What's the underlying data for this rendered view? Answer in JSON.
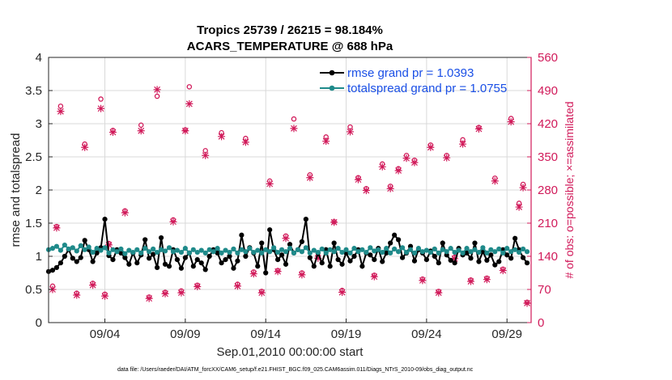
{
  "chart_data": {
    "type": "line",
    "title_line1": "Tropics 25739 / 26215 = 98.184%",
    "title_line2": "ACARS_TEMPERATURE @ 688 hPa",
    "xlabel": "Sep.01,2010 00:00:00 start",
    "ylabel_left": "rmse and totalspread",
    "ylabel_right": "# of obs: o=possible; ×=assimilated",
    "footer": "data file: /Users/raeder/DAI/ATM_forcXX/CAM6_setup/f.e21.FHIST_BGC.f09_025.CAM6assim.011/Diags_NTrS_2010-09/obs_diag_output.nc",
    "xlim": [
      0.5,
      30.5
    ],
    "ylim_left": [
      0,
      4
    ],
    "ylim_right": [
      0,
      560
    ],
    "xticks": [
      {
        "x": 4,
        "label": "09/04"
      },
      {
        "x": 9,
        "label": "09/09"
      },
      {
        "x": 14,
        "label": "09/14"
      },
      {
        "x": 19,
        "label": "09/19"
      },
      {
        "x": 24,
        "label": "09/24"
      },
      {
        "x": 29,
        "label": "09/29"
      }
    ],
    "yticks_left": [
      {
        "v": 0,
        "label": "0"
      },
      {
        "v": 0.5,
        "label": "0.5"
      },
      {
        "v": 1,
        "label": "1"
      },
      {
        "v": 1.5,
        "label": "1.5"
      },
      {
        "v": 2,
        "label": "2"
      },
      {
        "v": 2.5,
        "label": "2.5"
      },
      {
        "v": 3,
        "label": "3"
      },
      {
        "v": 3.5,
        "label": "3.5"
      },
      {
        "v": 4,
        "label": "4"
      }
    ],
    "yticks_right": [
      {
        "v": 0,
        "label": "0"
      },
      {
        "v": 70,
        "label": "70"
      },
      {
        "v": 140,
        "label": "140"
      },
      {
        "v": 210,
        "label": "210"
      },
      {
        "v": 280,
        "label": "280"
      },
      {
        "v": 350,
        "label": "350"
      },
      {
        "v": 420,
        "label": "420"
      },
      {
        "v": 490,
        "label": "490"
      },
      {
        "v": 560,
        "label": "560"
      }
    ],
    "series": [
      {
        "name": "rmse",
        "legend": "rmse grand pr = 1.0393",
        "color": "#000000",
        "x": [
          0.5,
          0.75,
          1.0,
          1.25,
          1.5,
          1.75,
          2.0,
          2.25,
          2.5,
          2.75,
          3.0,
          3.25,
          3.5,
          3.75,
          4.0,
          4.25,
          4.5,
          4.75,
          5.0,
          5.25,
          5.5,
          5.75,
          6.0,
          6.25,
          6.5,
          6.75,
          7.0,
          7.25,
          7.5,
          7.75,
          8.0,
          8.25,
          8.5,
          8.75,
          9.0,
          9.25,
          9.5,
          9.75,
          10.0,
          10.25,
          10.5,
          10.75,
          11.0,
          11.25,
          11.5,
          11.75,
          12.0,
          12.25,
          12.5,
          12.75,
          13.0,
          13.25,
          13.5,
          13.75,
          14.0,
          14.25,
          14.5,
          14.75,
          15.0,
          15.25,
          15.5,
          15.75,
          16.0,
          16.25,
          16.5,
          16.75,
          17.0,
          17.25,
          17.5,
          17.75,
          18.0,
          18.25,
          18.5,
          18.75,
          19.0,
          19.25,
          19.5,
          19.75,
          20.0,
          20.25,
          20.5,
          20.75,
          21.0,
          21.25,
          21.5,
          21.75,
          22.0,
          22.25,
          22.5,
          22.75,
          23.0,
          23.25,
          23.5,
          23.75,
          24.0,
          24.25,
          24.5,
          24.75,
          25.0,
          25.25,
          25.5,
          25.75,
          26.0,
          26.25,
          26.5,
          26.75,
          27.0,
          27.25,
          27.5,
          27.75,
          28.0,
          28.25,
          28.5,
          28.75,
          29.0,
          29.25,
          29.5,
          29.75,
          30.0,
          30.25
        ],
        "y": [
          0.77,
          0.79,
          0.83,
          0.9,
          1.0,
          1.1,
          0.97,
          0.92,
          0.98,
          1.24,
          1.1,
          0.92,
          1.05,
          1.13,
          1.56,
          1.01,
          0.95,
          1.1,
          1.05,
          0.98,
          0.88,
          1.05,
          0.9,
          1.02,
          1.25,
          0.97,
          1.03,
          0.83,
          1.28,
          0.88,
          0.85,
          1.1,
          0.95,
          0.82,
          0.98,
          1.05,
          0.85,
          0.95,
          0.9,
          0.8,
          1.0,
          1.1,
          1.05,
          0.9,
          0.95,
          1.0,
          0.82,
          0.93,
          1.32,
          1.0,
          1.13,
          1.05,
          0.85,
          1.2,
          0.75,
          1.4,
          1.1,
          0.95,
          1.02,
          0.88,
          1.18,
          1.05,
          1.1,
          1.22,
          1.56,
          0.98,
          0.85,
          1.05,
          0.9,
          1.1,
          0.85,
          1.2,
          0.95,
          0.88,
          1.05,
          0.93,
          1.0,
          1.1,
          0.85,
          1.05,
          1.02,
          0.95,
          1.12,
          0.92,
          1.05,
          1.2,
          1.32,
          1.25,
          0.98,
          1.05,
          1.15,
          0.93,
          1.1,
          1.05,
          0.95,
          1.08,
          1.0,
          0.9,
          1.2,
          1.02,
          0.94,
          0.9,
          1.12,
          1.02,
          1.05,
          0.97,
          1.2,
          0.92,
          1.07,
          0.94,
          1.02,
          0.87,
          0.92,
          1.1,
          1.02,
          0.97,
          1.27,
          1.1,
          0.98,
          0.9
        ]
      },
      {
        "name": "totalspread",
        "legend": "totalspread grand pr = 1.0755",
        "color": "#1f8a8a",
        "x": [
          0.5,
          0.75,
          1.0,
          1.25,
          1.5,
          1.75,
          2.0,
          2.25,
          2.5,
          2.75,
          3.0,
          3.25,
          3.5,
          3.75,
          4.0,
          4.25,
          4.5,
          4.75,
          5.0,
          5.25,
          5.5,
          5.75,
          6.0,
          6.25,
          6.5,
          6.75,
          7.0,
          7.25,
          7.5,
          7.75,
          8.0,
          8.25,
          8.5,
          8.75,
          9.0,
          9.25,
          9.5,
          9.75,
          10.0,
          10.25,
          10.5,
          10.75,
          11.0,
          11.25,
          11.5,
          11.75,
          12.0,
          12.25,
          12.5,
          12.75,
          13.0,
          13.25,
          13.5,
          13.75,
          14.0,
          14.25,
          14.5,
          14.75,
          15.0,
          15.25,
          15.5,
          15.75,
          16.0,
          16.25,
          16.5,
          16.75,
          17.0,
          17.25,
          17.5,
          17.75,
          18.0,
          18.25,
          18.5,
          18.75,
          19.0,
          19.25,
          19.5,
          19.75,
          20.0,
          20.25,
          20.5,
          20.75,
          21.0,
          21.25,
          21.5,
          21.75,
          22.0,
          22.25,
          22.5,
          22.75,
          23.0,
          23.25,
          23.5,
          23.75,
          24.0,
          24.25,
          24.5,
          24.75,
          25.0,
          25.25,
          25.5,
          25.75,
          26.0,
          26.25,
          26.5,
          26.75,
          27.0,
          27.25,
          27.5,
          27.75,
          28.0,
          28.25,
          28.5,
          28.75,
          29.0,
          29.25,
          29.5,
          29.75,
          30.0,
          30.25
        ],
        "y": [
          1.1,
          1.12,
          1.15,
          1.09,
          1.17,
          1.11,
          1.13,
          1.08,
          1.16,
          1.1,
          1.14,
          1.06,
          1.12,
          1.09,
          1.13,
          1.05,
          1.1,
          1.07,
          1.11,
          1.04,
          1.09,
          1.06,
          1.1,
          1.05,
          1.12,
          1.07,
          1.11,
          1.06,
          1.1,
          1.08,
          1.13,
          1.07,
          1.09,
          1.06,
          1.12,
          1.05,
          1.1,
          1.06,
          1.09,
          1.05,
          1.1,
          1.07,
          1.12,
          1.05,
          1.09,
          1.06,
          1.11,
          1.05,
          1.1,
          1.07,
          1.12,
          1.06,
          1.09,
          1.05,
          1.1,
          1.07,
          1.13,
          1.06,
          1.1,
          1.07,
          1.12,
          1.05,
          1.1,
          1.07,
          1.13,
          1.05,
          1.09,
          1.06,
          1.11,
          1.05,
          1.1,
          1.07,
          1.12,
          1.06,
          1.1,
          1.05,
          1.12,
          1.07,
          1.1,
          1.06,
          1.13,
          1.08,
          1.1,
          1.06,
          1.12,
          1.05,
          1.11,
          1.07,
          1.13,
          1.06,
          1.1,
          1.05,
          1.12,
          1.07,
          1.09,
          1.06,
          1.11,
          1.05,
          1.1,
          1.07,
          1.12,
          1.06,
          1.09,
          1.05,
          1.12,
          1.07,
          1.1,
          1.06,
          1.13,
          1.05,
          1.1,
          1.07,
          1.11,
          1.05,
          1.12,
          1.07,
          1.1,
          1.06,
          1.11,
          1.07
        ]
      }
    ],
    "obs_possible": {
      "marker": "o",
      "color": "#d11a5a",
      "x": [
        0.75,
        1.0,
        1.25,
        2.25,
        2.75,
        3.25,
        3.75,
        4.0,
        4.25,
        4.5,
        5.25,
        6.25,
        6.75,
        7.25,
        7.75,
        8.25,
        8.75,
        9.0,
        9.25,
        9.75,
        10.25,
        11.25,
        12.25,
        12.75,
        13.25,
        13.75,
        14.25,
        14.75,
        15.25,
        15.75,
        16.25,
        16.75,
        17.25,
        17.75,
        18.25,
        18.75,
        19.25,
        19.75,
        20.25,
        20.75,
        21.25,
        21.75,
        22.25,
        22.75,
        23.25,
        23.75,
        24.25,
        24.75,
        25.25,
        25.75,
        26.25,
        26.75,
        27.25,
        27.75,
        28.25,
        28.75,
        29.25,
        29.75,
        30.0,
        30.25
      ],
      "y": [
        77,
        203,
        457,
        62,
        377,
        83,
        472,
        60,
        167,
        406,
        236,
        417,
        54,
        478,
        64,
        217,
        67,
        407,
        498,
        79,
        363,
        401,
        81,
        389,
        107,
        66,
        299,
        110,
        183,
        430,
        105,
        312,
        140,
        392,
        213,
        68,
        413,
        306,
        283,
        100,
        335,
        288,
        325,
        353,
        343,
        92,
        375,
        66,
        353,
        138,
        386,
        90,
        412,
        94,
        305,
        113,
        431,
        252,
        292,
        43
      ]
    },
    "obs_assimilated": {
      "marker": "x",
      "color": "#d11a5a",
      "x": [
        0.75,
        1.0,
        1.25,
        2.25,
        2.75,
        3.25,
        3.75,
        4.0,
        4.25,
        4.5,
        5.25,
        6.25,
        6.75,
        7.25,
        7.75,
        8.25,
        8.75,
        9.0,
        9.25,
        9.75,
        10.25,
        11.25,
        12.25,
        12.75,
        13.25,
        13.75,
        14.25,
        14.75,
        15.25,
        15.75,
        16.25,
        16.75,
        17.25,
        17.75,
        18.25,
        18.75,
        19.25,
        19.75,
        20.25,
        20.75,
        21.25,
        21.75,
        22.25,
        22.75,
        23.25,
        23.75,
        24.25,
        24.75,
        25.25,
        25.75,
        26.25,
        26.75,
        27.25,
        27.75,
        28.25,
        28.75,
        29.25,
        29.75,
        30.0,
        30.25
      ],
      "y": [
        70,
        200,
        446,
        58,
        370,
        79,
        452,
        56,
        164,
        402,
        232,
        405,
        51,
        492,
        61,
        213,
        63,
        405,
        462,
        76,
        353,
        393,
        77,
        381,
        103,
        63,
        293,
        108,
        178,
        410,
        101,
        306,
        136,
        383,
        212,
        64,
        403,
        302,
        279,
        97,
        329,
        283,
        321,
        347,
        338,
        89,
        370,
        63,
        348,
        135,
        377,
        87,
        409,
        91,
        299,
        110,
        424,
        244,
        285,
        41
      ]
    }
  }
}
